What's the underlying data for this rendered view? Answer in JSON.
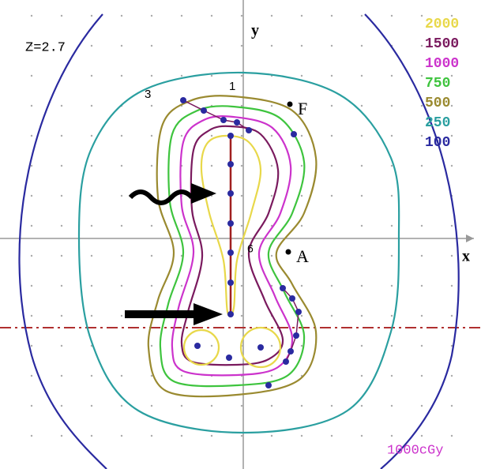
{
  "label": "Z=2.7",
  "axes": {
    "y": "y",
    "x": "x"
  },
  "legend": [
    {
      "label": "2000",
      "color": "#e8d84a"
    },
    {
      "label": "1500",
      "color": "#7a1a5e"
    },
    {
      "label": "1000",
      "color": "#cc33cc"
    },
    {
      "label": "750",
      "color": "#3ec43e"
    },
    {
      "label": "500",
      "color": "#9a8a30"
    },
    {
      "label": "250",
      "color": "#2a9fa0"
    },
    {
      "label": "100",
      "color": "#2a2aa0"
    }
  ],
  "points": {
    "f": "F",
    "a": "A",
    "p3": "3",
    "p1": "1",
    "p6": "6"
  },
  "footer": "1000cGy"
}
